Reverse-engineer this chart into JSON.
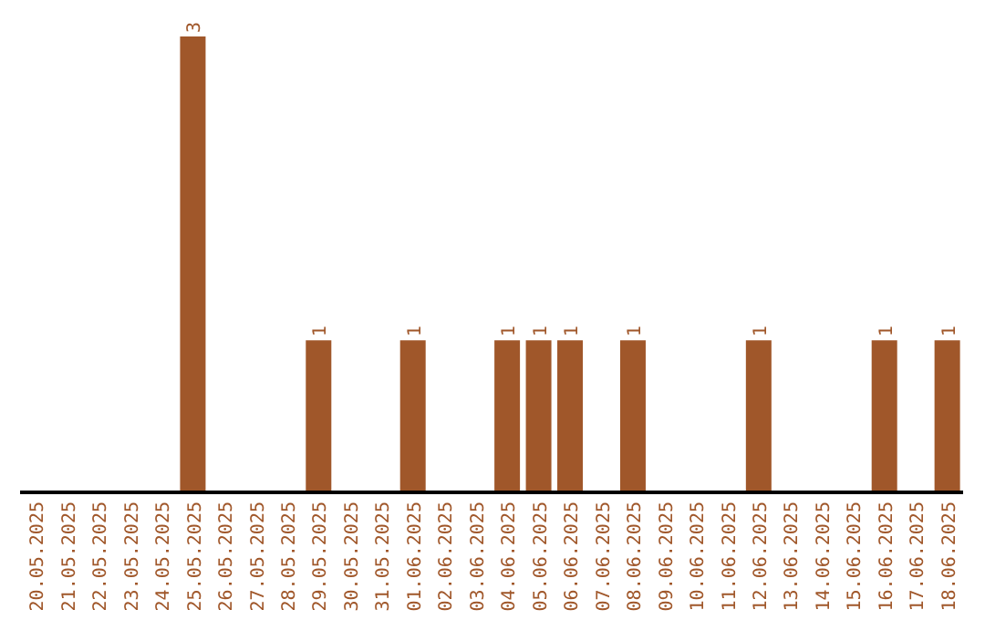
{
  "chart_data": {
    "type": "bar",
    "categories": [
      "20.05.2025",
      "21.05.2025",
      "22.05.2025",
      "23.05.2025",
      "24.05.2025",
      "25.05.2025",
      "26.05.2025",
      "27.05.2025",
      "28.05.2025",
      "29.05.2025",
      "30.05.2025",
      "31.05.2025",
      "01.06.2025",
      "02.06.2025",
      "03.06.2025",
      "04.06.2025",
      "05.06.2025",
      "06.06.2025",
      "07.06.2025",
      "08.06.2025",
      "09.06.2025",
      "10.06.2025",
      "11.06.2025",
      "12.06.2025",
      "13.06.2025",
      "14.06.2025",
      "15.06.2025",
      "16.06.2025",
      "17.06.2025",
      "18.06.2025"
    ],
    "values": [
      0,
      0,
      0,
      0,
      0,
      3,
      0,
      0,
      0,
      1,
      0,
      0,
      1,
      0,
      0,
      1,
      1,
      1,
      0,
      1,
      0,
      0,
      0,
      1,
      0,
      0,
      0,
      1,
      0,
      1
    ],
    "value_labels": [
      null,
      null,
      null,
      null,
      null,
      "3",
      null,
      null,
      null,
      "1",
      null,
      null,
      "1",
      null,
      null,
      "1",
      "1",
      "1",
      null,
      "1",
      null,
      null,
      null,
      "1",
      null,
      null,
      null,
      "1",
      null,
      "1"
    ],
    "color": "#a0572a",
    "grid": false,
    "legend": false
  }
}
